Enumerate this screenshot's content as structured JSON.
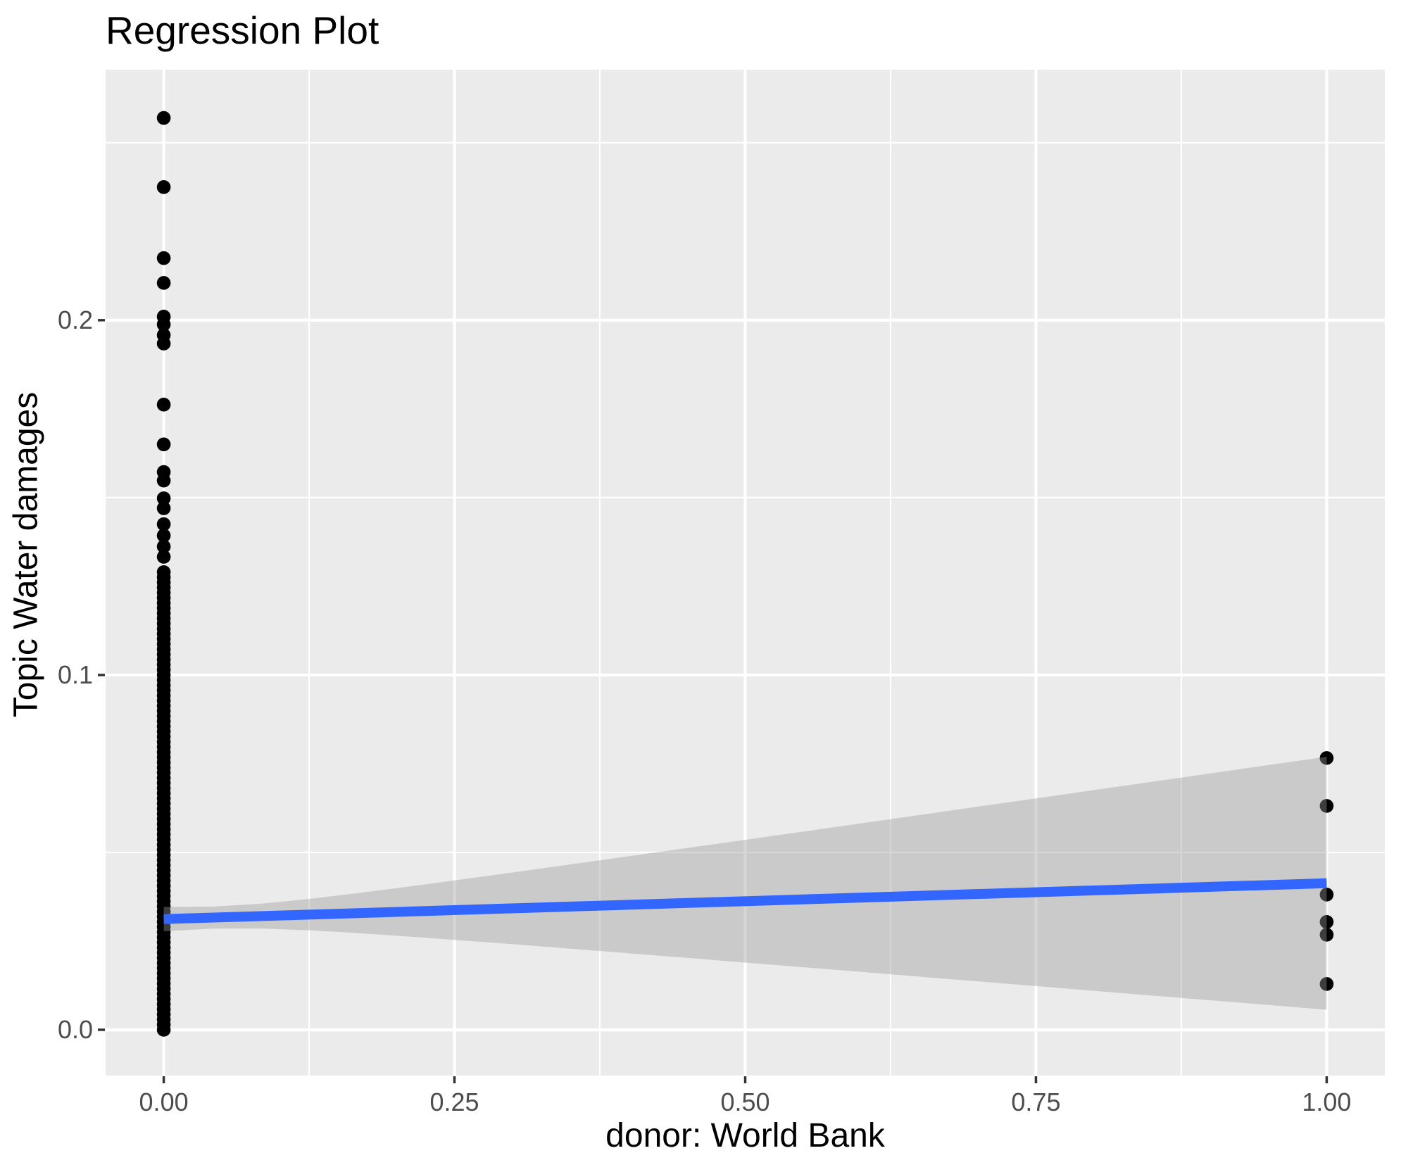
{
  "title": "Regression Plot",
  "axes": {
    "x": {
      "title": "donor: World Bank",
      "ticks": [
        {
          "value": 0.0,
          "label": "0.00"
        },
        {
          "value": 0.25,
          "label": "0.25"
        },
        {
          "value": 0.5,
          "label": "0.50"
        },
        {
          "value": 0.75,
          "label": "0.75"
        },
        {
          "value": 1.0,
          "label": "1.00"
        }
      ]
    },
    "y": {
      "title": "Topic Water damages",
      "ticks": [
        {
          "value": 0.0,
          "label": "0.0"
        },
        {
          "value": 0.1,
          "label": "0.1"
        },
        {
          "value": 0.2,
          "label": "0.2"
        }
      ]
    }
  },
  "chart_data": {
    "type": "scatter",
    "title": "Regression Plot",
    "xlabel": "donor: World Bank",
    "ylabel": "Topic Water damages",
    "xlim": [
      -0.05,
      1.05
    ],
    "ylim": [
      -0.0129,
      0.2706
    ],
    "grid": {
      "x_major": [
        0.0,
        0.25,
        0.5,
        0.75,
        1.0
      ],
      "x_minor": [
        0.125,
        0.375,
        0.625,
        0.875
      ],
      "y_major": [
        0.0,
        0.1,
        0.2
      ],
      "y_minor": [
        0.05,
        0.15,
        0.25
      ]
    },
    "series": [
      {
        "name": "observations at x=0",
        "x": 0.0,
        "y_values": [
          0.257,
          0.2375,
          0.2175,
          0.2105,
          0.201,
          0.1988,
          0.1958,
          0.1934,
          0.1762,
          0.165,
          0.1572,
          0.1548,
          0.1498,
          0.147,
          0.1425,
          0.1393,
          0.1362,
          0.1333
        ],
        "dense_band": {
          "comment": "heavily overplotted continuous column of points",
          "min": 0.0,
          "max": 0.129,
          "count": 90
        }
      },
      {
        "name": "observations at x=1",
        "x": 1.0,
        "y_values": [
          0.0766,
          0.0631,
          0.0381,
          0.0304,
          0.0268,
          0.0129
        ]
      }
    ],
    "regression_line": {
      "intercept": 0.0312,
      "slope": 0.0101,
      "x_range": [
        0.0,
        1.0
      ]
    },
    "confidence_band": {
      "model": "halfwidth = sqrt(h0^2 + (k*(x - x_center))^2)",
      "h0": 0.0031,
      "k": 0.037,
      "x_center": 0.04,
      "at_x0": [
        0.0278,
        0.0347
      ],
      "at_x1": [
        0.006,
        0.0774
      ],
      "x_range": [
        0.0,
        1.0
      ]
    },
    "colors": {
      "panel_background": "#EBEBEB",
      "gridline": "#FFFFFF",
      "point": "#000000",
      "regression_line": "#3366FF",
      "band_fill": "#999999",
      "band_opacity": 0.4,
      "tick_label": "#4D4D4D",
      "tick_mark": "#333333",
      "title_text": "#000000"
    },
    "legend": "none"
  }
}
